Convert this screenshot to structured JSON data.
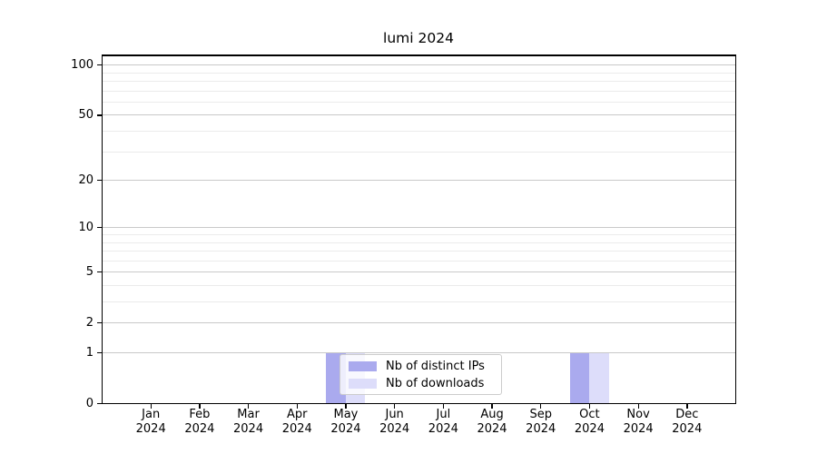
{
  "chart_data": {
    "type": "bar",
    "title": "lumi 2024",
    "categories": [
      "Jan",
      "Feb",
      "Mar",
      "Apr",
      "May",
      "Jun",
      "Jul",
      "Aug",
      "Sep",
      "Oct",
      "Nov",
      "Dec"
    ],
    "year": "2024",
    "series": [
      {
        "name": "Nb of distinct IPs",
        "color": "#aaaaee",
        "values": [
          0,
          0,
          0,
          0,
          1,
          0,
          0,
          0,
          0,
          1,
          0,
          0
        ]
      },
      {
        "name": "Nb of downloads",
        "color": "#ddddfa",
        "values": [
          0,
          0,
          0,
          0,
          1,
          0,
          0,
          0,
          0,
          1,
          0,
          0
        ]
      }
    ],
    "xlabel": "",
    "ylabel": "",
    "yscale": "log1p",
    "ylim": [
      0,
      113
    ],
    "y_major_ticks": [
      0,
      1,
      2,
      5,
      10,
      20,
      50,
      100
    ],
    "y_minor_gridlines": [
      3,
      4,
      6,
      7,
      8,
      9,
      30,
      40,
      60,
      70,
      80,
      90
    ],
    "grid": true,
    "legend_position": "lower center"
  },
  "colors": {
    "background": "#ffffff",
    "spine": "#000000",
    "grid_major": "#c9c9c9",
    "grid_minor": "#ebebeb",
    "text": "#000000",
    "legend_border": "#cccccc",
    "legend_background": "rgba(255,255,255,0.8)"
  }
}
